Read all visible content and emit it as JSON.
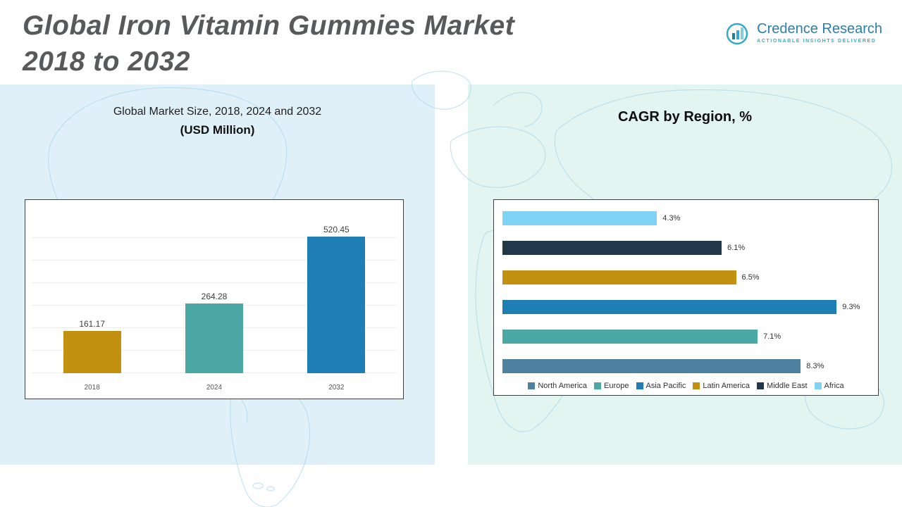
{
  "page": {
    "title_line1": "Global Iron Vitamin Gummies Market",
    "title_line2": "2018 to 2032"
  },
  "logo": {
    "brand": "Credence Research",
    "tagline": "Actionable Insights Delivered"
  },
  "market_size_chart": {
    "title": "Global Market Size, 2018, 2024 and 2032",
    "subtitle": "(USD Million)"
  },
  "cagr_chart": {
    "title": "CAGR by Region, %"
  },
  "chart_data": [
    {
      "type": "bar",
      "orientation": "vertical",
      "title": "Global Market Size, 2018, 2024 and 2032 (USD Million)",
      "categories": [
        "2018",
        "2024",
        "2032"
      ],
      "values": [
        161.17,
        264.28,
        520.45
      ],
      "value_labels": [
        "161.17",
        "264.28",
        "520.45"
      ],
      "colors": [
        "#C29110",
        "#4CA8A4",
        "#1F7EB4"
      ],
      "ylim": [
        0,
        600
      ],
      "grid": true,
      "legend_position": "none"
    },
    {
      "type": "bar",
      "orientation": "horizontal",
      "title": "CAGR by Region, %",
      "categories": [
        "Africa",
        "Middle East",
        "Latin America",
        "Asia Pacific",
        "Europe",
        "North America"
      ],
      "values": [
        4.3,
        6.1,
        6.5,
        9.3,
        7.1,
        8.3
      ],
      "value_labels": [
        "4.3%",
        "6.1%",
        "6.5%",
        "9.3%",
        "7.1%",
        "8.3%"
      ],
      "colors": [
        "#7ED3F7",
        "#22384A",
        "#C29110",
        "#1F7EB4",
        "#4CA8A4",
        "#4E80A0"
      ],
      "xlim": [
        0,
        10
      ],
      "legend_position": "bottom",
      "legend": [
        {
          "label": "North America",
          "color": "#4E80A0"
        },
        {
          "label": "Europe",
          "color": "#4CA8A4"
        },
        {
          "label": "Asia Pacific",
          "color": "#1F7EB4"
        },
        {
          "label": "Latin America",
          "color": "#C29110"
        },
        {
          "label": "Middle East",
          "color": "#22384A"
        },
        {
          "label": "Africa",
          "color": "#7ED3F7"
        }
      ]
    }
  ]
}
